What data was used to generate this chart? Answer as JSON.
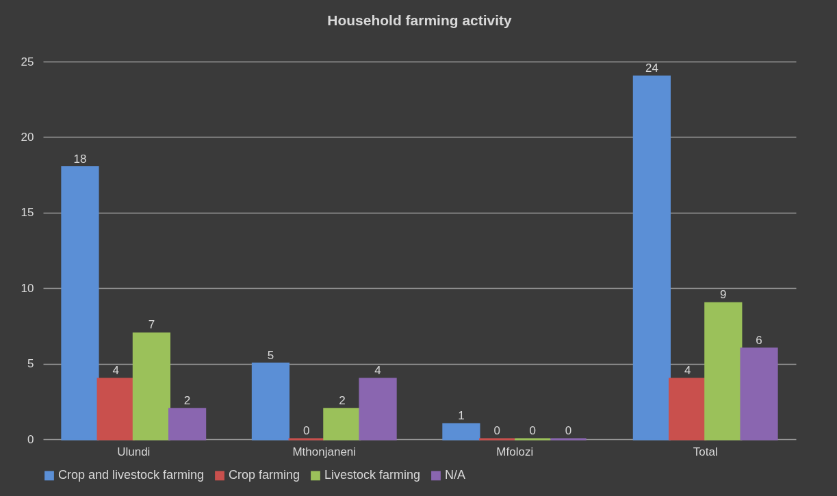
{
  "chart_data": {
    "type": "bar",
    "title": "Household farming activity",
    "categories": [
      "Ulundi",
      "Mthonjaneni",
      "Mfolozi",
      "Total"
    ],
    "series": [
      {
        "name": "Crop and livestock farming",
        "color": "#5b8fd6",
        "values": [
          18,
          5,
          1,
          24
        ]
      },
      {
        "name": "Crop farming",
        "color": "#c9504d",
        "values": [
          4,
          0,
          0,
          4
        ]
      },
      {
        "name": "Livestock farming",
        "color": "#9bc15a",
        "values": [
          7,
          2,
          0,
          9
        ]
      },
      {
        "name": "N/A",
        "color": "#8a66b0",
        "values": [
          2,
          4,
          0,
          6
        ]
      }
    ],
    "ylim": [
      0,
      25
    ],
    "yticks": [
      0,
      5,
      10,
      15,
      20,
      25
    ],
    "grid": "y",
    "legend": "bottom",
    "data_labels": true
  }
}
